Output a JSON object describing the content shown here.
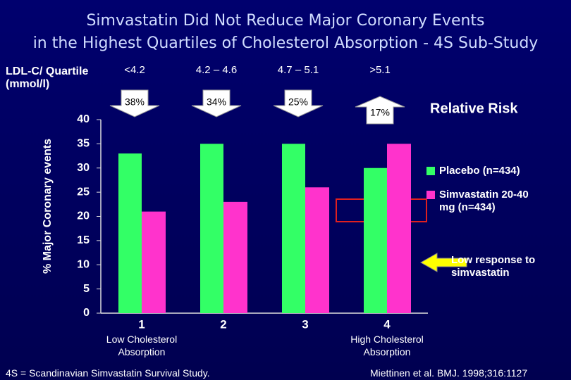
{
  "chart_data": {
    "type": "bar",
    "title": [
      "Simvastatin Did Not Reduce Major Coronary Events",
      "in the Highest Quartiles of Cholesterol Absorption - 4S Sub-Study"
    ],
    "ylabel": "% Major Coronary events",
    "categories": [
      "1",
      "2",
      "3",
      "4"
    ],
    "category_notes": [
      "Low Cholesterol Absorption",
      null,
      null,
      "High Cholesterol Absorption"
    ],
    "series": [
      {
        "name": "Placebo (n=434)",
        "color": "#33ff66",
        "values": [
          33,
          35,
          35,
          30
        ]
      },
      {
        "name": "Simvastatin 20-40 mg (n=434)",
        "color": "#ff33cc",
        "values": [
          21,
          23,
          26,
          35
        ]
      }
    ],
    "ylim": [
      0,
      40
    ],
    "yticks": [
      0,
      5,
      10,
      15,
      20,
      25,
      30,
      35,
      40
    ],
    "quartile_label": "LDL-C/ Quartile (mmol/l)",
    "quartiles": [
      "<4.2",
      "4.2 – 4.6",
      "4.7 – 5.1",
      ">5.1"
    ],
    "relative_risk": {
      "label": "Relative Risk",
      "values": [
        38,
        34,
        25,
        17
      ],
      "value_labels": [
        "38%",
        "34%",
        "25%",
        "17%"
      ],
      "direction": [
        "down",
        "down",
        "down",
        "up"
      ]
    },
    "annotation": "Low response to simvastatin",
    "footnote_left": "4S = Scandinavian Simvastatin Survival Study.",
    "footnote_right": "Miettinen et al. BMJ. 1998;316:1127"
  }
}
